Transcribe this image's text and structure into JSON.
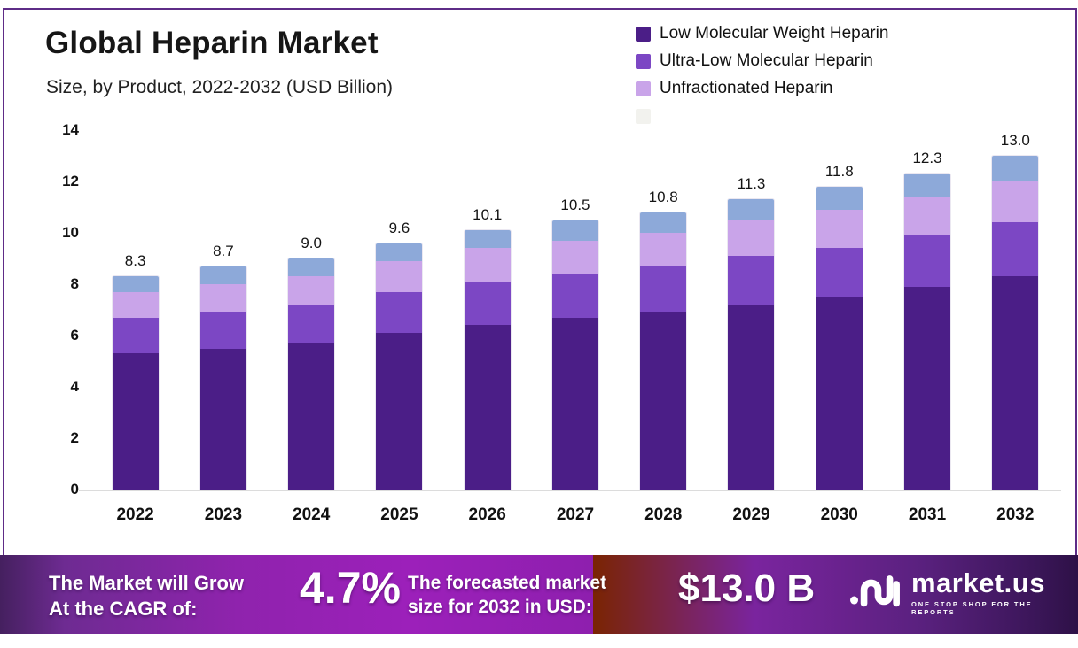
{
  "header": {
    "title": "Global Heparin Market",
    "subtitle": "Size, by Product, 2022-2032 (USD Billion)"
  },
  "legend": {
    "items": [
      {
        "label": "Low Molecular Weight Heparin",
        "color": "#4B1E87"
      },
      {
        "label": "Ultra-Low Molecular Heparin",
        "color": "#7C47C4"
      },
      {
        "label": "Unfractionated Heparin",
        "color": "#C9A4E9"
      },
      {
        "label": "",
        "color": "#F2F2EE"
      }
    ]
  },
  "chart_data": {
    "type": "bar",
    "stacked": true,
    "title": "Global Heparin Market Size, by Product, 2022-2032 (USD Billion)",
    "categories": [
      "2022",
      "2023",
      "2024",
      "2025",
      "2026",
      "2027",
      "2028",
      "2029",
      "2030",
      "2031",
      "2032"
    ],
    "series": [
      {
        "name": "Low Molecular Weight Heparin",
        "color": "#4B1E87",
        "values": [
          5.3,
          5.5,
          5.7,
          6.1,
          6.4,
          6.7,
          6.9,
          7.2,
          7.5,
          7.9,
          8.3
        ]
      },
      {
        "name": "Ultra-Low Molecular Heparin",
        "color": "#7C47C4",
        "values": [
          1.4,
          1.4,
          1.5,
          1.6,
          1.7,
          1.7,
          1.8,
          1.9,
          1.9,
          2.0,
          2.1
        ]
      },
      {
        "name": "Unfractionated Heparin",
        "color": "#C9A4E9",
        "values": [
          1.0,
          1.1,
          1.1,
          1.2,
          1.3,
          1.3,
          1.3,
          1.4,
          1.5,
          1.5,
          1.6
        ]
      },
      {
        "name": "",
        "color": "#8DA9D9",
        "values": [
          0.6,
          0.7,
          0.7,
          0.7,
          0.7,
          0.8,
          0.8,
          0.8,
          0.9,
          0.9,
          1.0
        ]
      }
    ],
    "totals": [
      "8.3",
      "8.7",
      "9.0",
      "9.6",
      "10.1",
      "10.5",
      "10.8",
      "11.3",
      "11.8",
      "12.3",
      "13.0"
    ],
    "ylim": [
      0,
      14
    ],
    "yticks": [
      0,
      2,
      4,
      6,
      8,
      10,
      12,
      14
    ],
    "grid": false,
    "legend_position": "top-right"
  },
  "banner": {
    "left_line1": "The Market will Grow",
    "left_line2": "At the CAGR of:",
    "cagr": "4.7%",
    "mid_line1": "The forecasted market",
    "mid_line2": "size for 2032 in USD:",
    "forecast_value": "$13.0 B",
    "brand": "market.us",
    "tagline": "ONE STOP SHOP FOR THE REPORTS"
  },
  "colors": {
    "frame_border": "#5E2C87",
    "banner_center": "#9C20BA",
    "banner_edge": "#2E1147",
    "baseline": "#DCDCDC",
    "text": "#111111"
  }
}
